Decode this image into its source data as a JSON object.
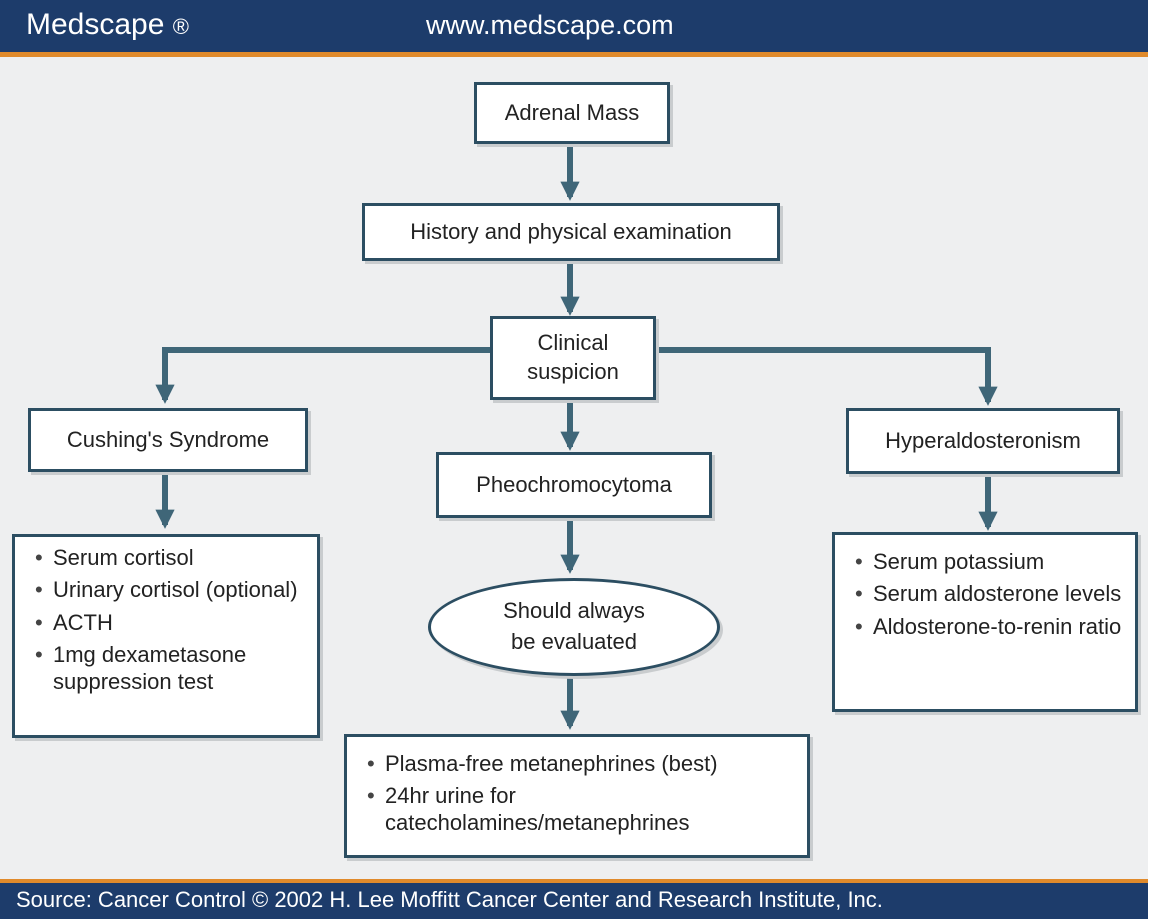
{
  "header": {
    "brand": "Medscape",
    "brand_mark": "®",
    "url": "www.medscape.com"
  },
  "diagram": {
    "adrenal_mass": "Adrenal Mass",
    "history_exam": "History and physical examination",
    "clinical_suspicion_line1": "Clinical",
    "clinical_suspicion_line2": "suspicion",
    "cushings": "Cushing's Syndrome",
    "pheo": "Pheochromocytoma",
    "hyperaldo": "Hyperaldosteronism",
    "cushings_tests": [
      "Serum cortisol",
      "Urinary cortisol (optional)",
      "ACTH",
      "1mg dexametasone suppression test"
    ],
    "should_evaluate_line1": "Should always",
    "should_evaluate_line2": "be evaluated",
    "pheo_tests": [
      "Plasma-free metanephrines (best)",
      "24hr urine for catecholamines/metanephrines"
    ],
    "hyperaldo_tests": [
      "Serum potassium",
      "Serum aldosterone levels",
      "Aldosterone-to-renin ratio"
    ]
  },
  "footer": {
    "source": "Source: Cancer Control © 2002 H. Lee Moffitt Cancer Center and Research Institute, Inc."
  },
  "colors": {
    "header_bg": "#1d3c6b",
    "accent": "#e08a2b",
    "connector": "#3f6678",
    "box_border": "#2c4e62",
    "canvas_bg": "#eeeff0"
  }
}
